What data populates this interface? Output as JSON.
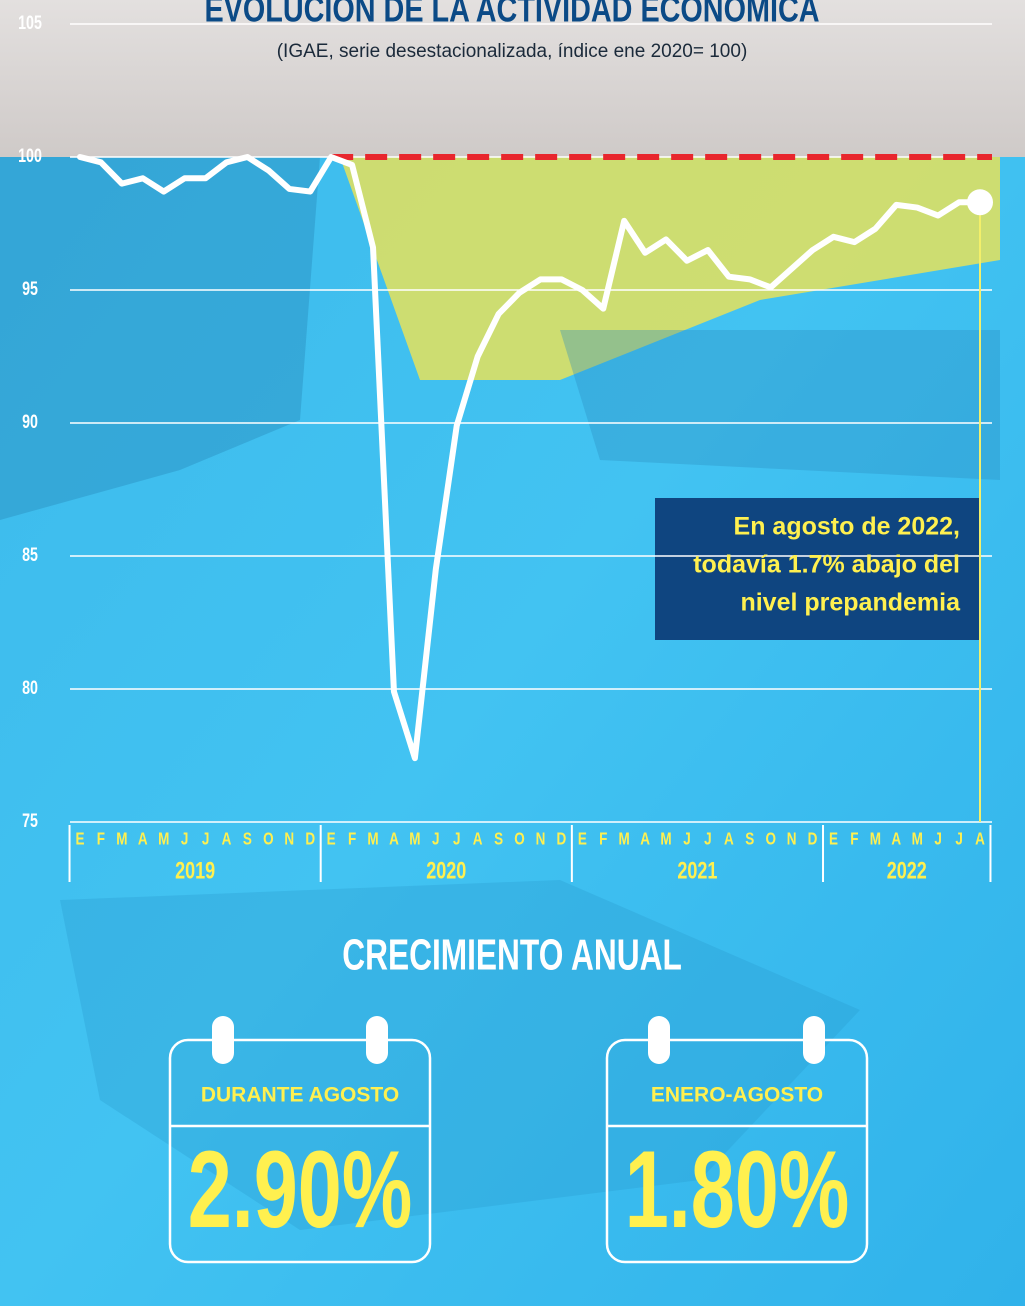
{
  "chart_data": {
    "type": "line",
    "title": "EVOLUCIÓN DE LA ACTIVIDAD ECONÓMICA",
    "subtitle": "(IGAE, serie desestacionalizada, índice ene 2020= 100)",
    "categories": [
      "E",
      "F",
      "M",
      "A",
      "M",
      "J",
      "J",
      "A",
      "S",
      "O",
      "N",
      "D",
      "E",
      "F",
      "M",
      "A",
      "M",
      "J",
      "J",
      "A",
      "S",
      "O",
      "N",
      "D",
      "E",
      "F",
      "M",
      "A",
      "M",
      "J",
      "J",
      "A",
      "S",
      "O",
      "N",
      "D",
      "E",
      "F",
      "M",
      "A",
      "M",
      "J",
      "J",
      "A"
    ],
    "year_groups": [
      "2019",
      "2020",
      "2021",
      "2022"
    ],
    "series": [
      {
        "name": "IGAE",
        "color": "#ffffff",
        "values": [
          100.0,
          99.8,
          99.0,
          99.2,
          98.7,
          99.2,
          99.2,
          99.8,
          100.0,
          99.5,
          98.8,
          98.7,
          100.0,
          99.7,
          96.6,
          79.9,
          77.4,
          84.5,
          89.9,
          92.5,
          94.1,
          94.9,
          95.4,
          95.4,
          95.0,
          94.3,
          97.6,
          96.4,
          96.9,
          96.1,
          96.5,
          95.5,
          95.4,
          95.1,
          95.8,
          96.5,
          97.0,
          96.8,
          97.3,
          98.2,
          98.1,
          97.8,
          98.3,
          98.3
        ]
      }
    ],
    "reference_line": {
      "value": 100,
      "color": "#e8262d"
    },
    "ylim": [
      75,
      105
    ],
    "yticks": [
      75,
      80,
      85,
      90,
      95,
      100,
      105
    ],
    "grid": true,
    "annotation": [
      "En agosto de 2022,",
      "todavía 1.7% abajo del",
      "nivel prepandemia"
    ],
    "section_title": "CRECIMIENTO ANUAL",
    "cards": [
      {
        "label": "DURANTE AGOSTO",
        "value": "2.90%"
      },
      {
        "label": "ENERO-AGOSTO",
        "value": "1.80%"
      }
    ]
  }
}
